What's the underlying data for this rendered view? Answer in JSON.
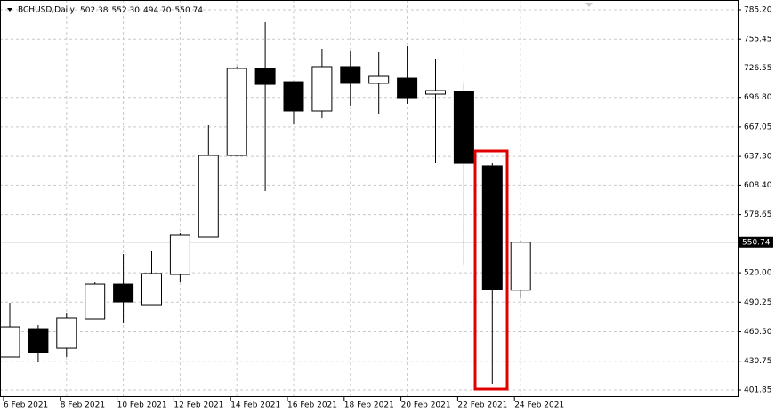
{
  "chart_data": {
    "type": "candlestick",
    "title": "BCHUSD,Daily",
    "ohlc_labels": [
      "502.38",
      "552.30",
      "494.70",
      "550.74"
    ],
    "last_price": 550.74,
    "last_price_label": "550.74",
    "categories": [
      "6 Feb 2021",
      null,
      "8 Feb 2021",
      null,
      "10 Feb 2021",
      null,
      "12 Feb 2021",
      null,
      "14 Feb 2021",
      null,
      "16 Feb 2021",
      null,
      "18 Feb 2021",
      null,
      "20 Feb 2021",
      null,
      "22 Feb 2021",
      null,
      "24 Feb 2021"
    ],
    "open": [
      435.0,
      463.6,
      443.9,
      473.5,
      508.4,
      487.8,
      518.3,
      555.9,
      638.3,
      726.1,
      712.6,
      683.1,
      727.9,
      710.9,
      716.2,
      700.1,
      702.8,
      627.6,
      502.38
    ],
    "high": [
      489.6,
      467.2,
      479.8,
      510.2,
      538.9,
      541.6,
      560.4,
      668.8,
      727.9,
      772.7,
      712.6,
      745.8,
      744.0,
      743.1,
      748.5,
      735.9,
      711.8,
      631.1,
      552.3
    ],
    "low": [
      435.0,
      429.6,
      435.0,
      473.5,
      469.0,
      487.8,
      510.2,
      555.9,
      638.3,
      602.5,
      669.7,
      675.9,
      688.5,
      680.4,
      690.3,
      630.2,
      528.1,
      408.1,
      494.7
    ],
    "close": [
      465.4,
      439.5,
      474.4,
      508.4,
      490.5,
      519.2,
      557.7,
      638.3,
      726.1,
      709.9,
      683.1,
      727.9,
      710.9,
      718.0,
      696.5,
      703.7,
      630.2,
      503.1,
      550.74
    ],
    "up_color": "#ffffff",
    "down_color": "#000000",
    "ylim": [
      401.85,
      785.2
    ],
    "yticks": [
      {
        "value": 785.2,
        "label": "785.20"
      },
      755.45,
      726.55,
      {
        "value": 696.8,
        "label": "696.80"
      },
      667.05,
      {
        "value": 637.3,
        "label": "637.30"
      },
      {
        "value": 608.4,
        "label": "608.40"
      },
      578.65,
      {
        "value": 520,
        "label": "520.00"
      },
      490.25,
      {
        "value": 460.5,
        "label": "460.50"
      },
      430.75,
      401.85
    ],
    "grid": true
  }
}
